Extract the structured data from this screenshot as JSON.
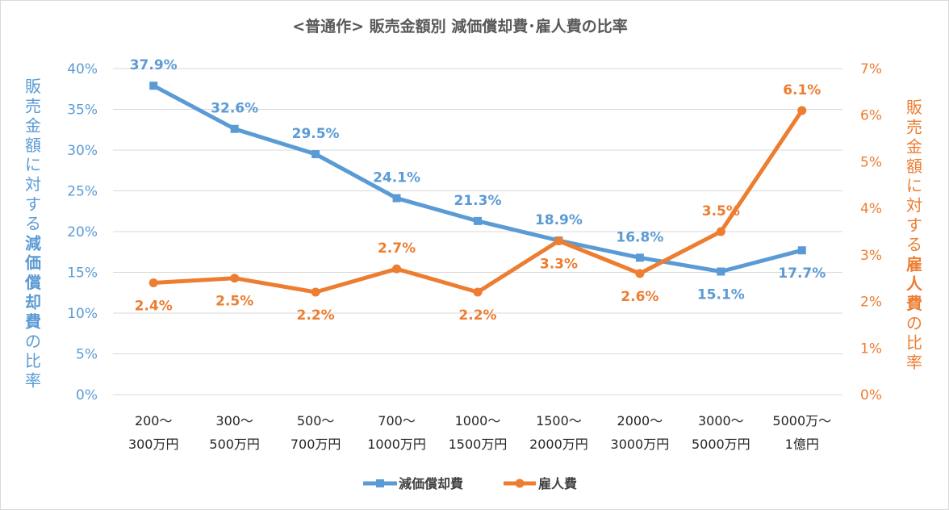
{
  "chart_data": {
    "type": "line",
    "title": "<普通作> 販売金額別 減価償却費･雇人費の比率",
    "categories": [
      [
        "200～",
        "300万円"
      ],
      [
        "300～",
        "500万円"
      ],
      [
        "500～",
        "700万円"
      ],
      [
        "700～",
        "1000万円"
      ],
      [
        "1000～",
        "1500万円"
      ],
      [
        "1500～",
        "2000万円"
      ],
      [
        "2000～",
        "3000万円"
      ],
      [
        "3000～",
        "5000万円"
      ],
      [
        "5000万～",
        "1億円"
      ]
    ],
    "series": [
      {
        "name": "減価償却費",
        "axis": "left",
        "color": "#5b9bd5",
        "marker": "square",
        "values": [
          37.9,
          32.6,
          29.5,
          24.1,
          21.3,
          18.9,
          16.8,
          15.1,
          17.7
        ],
        "labels": [
          "37.9%",
          "32.6%",
          "29.5%",
          "24.1%",
          "21.3%",
          "18.9%",
          "16.8%",
          "15.1%",
          "17.7%"
        ]
      },
      {
        "name": "雇人費",
        "axis": "right",
        "color": "#ed7d31",
        "marker": "circle",
        "values": [
          2.4,
          2.5,
          2.2,
          2.7,
          2.2,
          3.3,
          2.6,
          3.5,
          6.1
        ],
        "labels": [
          "2.4%",
          "2.5%",
          "2.2%",
          "2.7%",
          "2.2%",
          "3.3%",
          "2.6%",
          "3.5%",
          "6.1%"
        ]
      }
    ],
    "y_left": {
      "range": [
        0,
        40
      ],
      "ticks": [
        "0%",
        "5%",
        "10%",
        "15%",
        "20%",
        "25%",
        "30%",
        "35%",
        "40%"
      ],
      "label_parts": [
        "販売金額に対する",
        "減価償却費",
        "の比率"
      ],
      "color": "#5b9bd5"
    },
    "y_right": {
      "range": [
        0,
        7
      ],
      "ticks": [
        "0%",
        "1%",
        "2%",
        "3%",
        "4%",
        "5%",
        "6%",
        "7%"
      ],
      "label_parts": [
        "販売金額に対する",
        "雇人費",
        "の比率"
      ],
      "color": "#ed7d31"
    },
    "grid": true,
    "legend": "bottom"
  }
}
